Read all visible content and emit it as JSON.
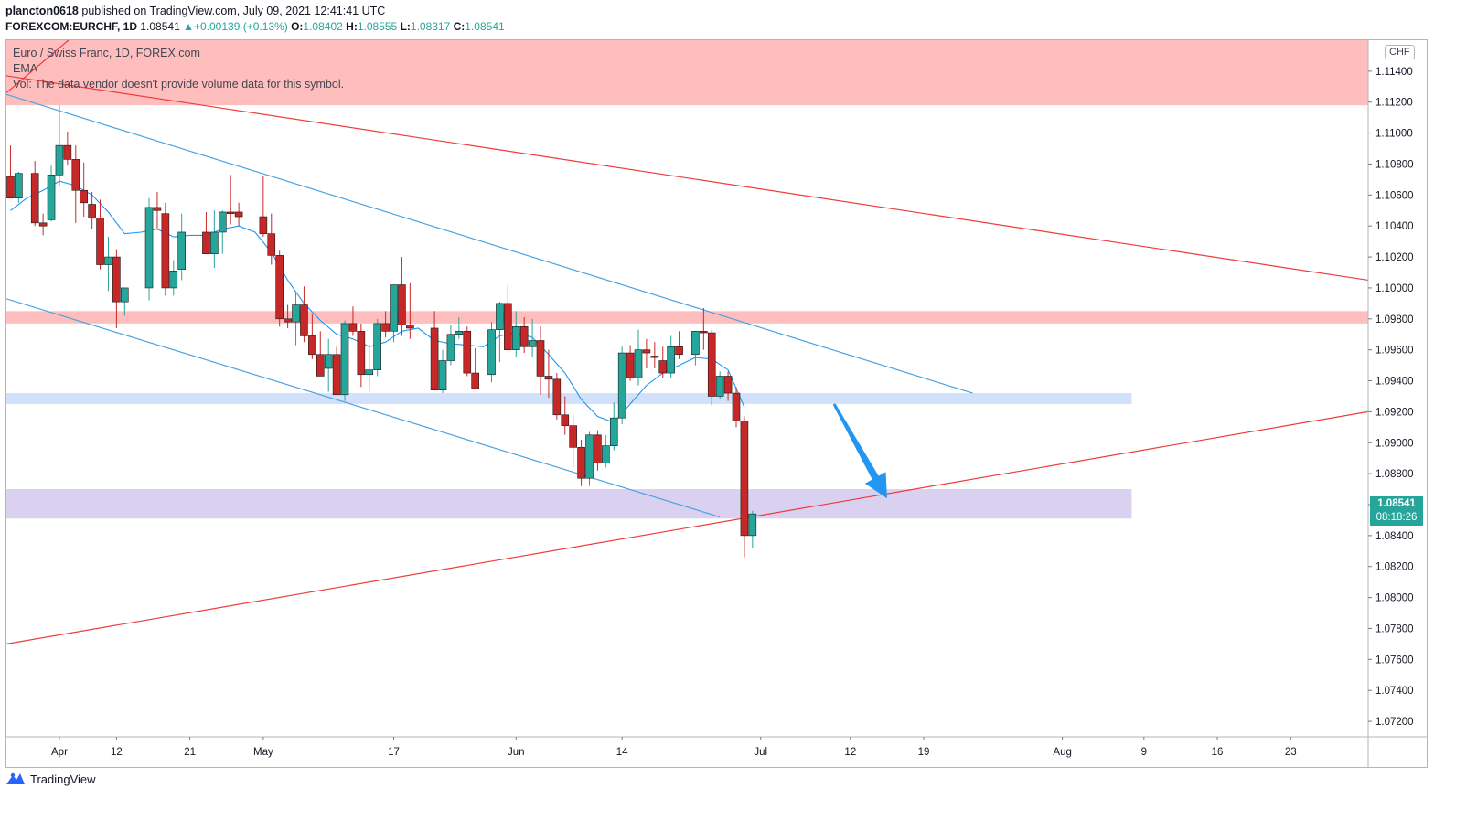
{
  "header": {
    "publisher": "plancton0618",
    "published_text": "published on TradingView.com, July 09, 2021 12:41:41 UTC",
    "symbol": "FOREXCOM:EURCHF, 1D",
    "last": "1.08541",
    "change": "+0.00139 (+0.13%)",
    "open_label": "O:",
    "open": "1.08402",
    "high_label": "H:",
    "high": "1.08555",
    "low_label": "L:",
    "low": "1.08317",
    "close_label": "C:",
    "close": "1.08541"
  },
  "legend": {
    "title": "Euro / Swiss Franc, 1D, FOREX.com",
    "ema": "EMA",
    "vol": "Vol: The data vendor doesn't provide volume data for this symbol."
  },
  "currency_badge": "CHF",
  "price_tag": {
    "price": "1.08541",
    "countdown": "08:18:26"
  },
  "footer": {
    "brand": "TradingView"
  },
  "colors": {
    "up": "#26a69a",
    "down": "#c62828",
    "ema": "#2196f3",
    "trend_red": "#ef3b3b",
    "channel_blue": "#4aa3df",
    "arrow": "#2196f3"
  },
  "chart_data": {
    "type": "candlestick",
    "y_axis": {
      "min": 1.071,
      "max": 1.116,
      "ticks": [
        "1.11400",
        "1.11200",
        "1.11000",
        "1.10800",
        "1.10600",
        "1.10400",
        "1.10200",
        "1.10000",
        "1.09800",
        "1.09600",
        "1.09400",
        "1.09200",
        "1.09000",
        "1.08800",
        "1.08600",
        "1.08400",
        "1.08200",
        "1.08000",
        "1.07800",
        "1.07600",
        "1.07400",
        "1.07200"
      ]
    },
    "x_axis": {
      "labels": [
        {
          "text": "Apr",
          "day": 6
        },
        {
          "text": "12",
          "day": 13
        },
        {
          "text": "21",
          "day": 22
        },
        {
          "text": "May",
          "day": 31
        },
        {
          "text": "17",
          "day": 47
        },
        {
          "text": "Jun",
          "day": 62
        },
        {
          "text": "14",
          "day": 75
        },
        {
          "text": "Jul",
          "day": 92
        },
        {
          "text": "12",
          "day": 103
        },
        {
          "text": "19",
          "day": 112
        },
        {
          "text": "Aug",
          "day": 129
        },
        {
          "text": "9",
          "day": 139
        },
        {
          "text": "16",
          "day": 148
        },
        {
          "text": "23",
          "day": 157
        }
      ],
      "day_range": [
        -0.5,
        166.5
      ]
    },
    "candles": [
      [
        0,
        1.1072,
        1.1092,
        1.1058,
        1.1058
      ],
      [
        1,
        1.1058,
        1.1075,
        1.1055,
        1.1074
      ],
      [
        3,
        1.1074,
        1.1082,
        1.104,
        1.1042
      ],
      [
        4,
        1.1042,
        1.1048,
        1.1034,
        1.104
      ],
      [
        5,
        1.1044,
        1.1079,
        1.1043,
        1.1073
      ],
      [
        6,
        1.1073,
        1.1118,
        1.1066,
        1.1092
      ],
      [
        7,
        1.1092,
        1.1101,
        1.1079,
        1.1083
      ],
      [
        8,
        1.1083,
        1.1092,
        1.1042,
        1.1063
      ],
      [
        9,
        1.1063,
        1.1081,
        1.1046,
        1.1055
      ],
      [
        10,
        1.1054,
        1.1062,
        1.1038,
        1.1045
      ],
      [
        11,
        1.1045,
        1.1057,
        1.1012,
        1.1015
      ],
      [
        12,
        1.1015,
        1.1033,
        1.0998,
        1.102
      ],
      [
        13,
        1.102,
        1.1025,
        1.0974,
        1.0991
      ],
      [
        14,
        1.0991,
        1.1,
        1.0982,
        1.1
      ],
      [
        17,
        1.1,
        1.1058,
        1.0992,
        1.1052
      ],
      [
        18,
        1.1052,
        1.1062,
        1.1038,
        1.105
      ],
      [
        19,
        1.1048,
        1.1055,
        1.0995,
        1.1
      ],
      [
        20,
        1.1,
        1.1018,
        1.0995,
        1.1011
      ],
      [
        21,
        1.1012,
        1.1048,
        1.1005,
        1.1036
      ],
      [
        24,
        1.1036,
        1.1049,
        1.1025,
        1.1022
      ],
      [
        25,
        1.1022,
        1.105,
        1.1013,
        1.1036
      ],
      [
        26,
        1.1036,
        1.105,
        1.1022,
        1.1049
      ],
      [
        27,
        1.1049,
        1.1073,
        1.1041,
        1.1048
      ],
      [
        28,
        1.1049,
        1.1055,
        1.104,
        1.1046
      ],
      [
        31,
        1.1046,
        1.1072,
        1.1033,
        1.1035
      ],
      [
        32,
        1.1035,
        1.1048,
        1.1015,
        1.1021
      ],
      [
        33,
        1.1021,
        1.1024,
        1.0975,
        1.098
      ],
      [
        34,
        1.098,
        1.0989,
        1.0974,
        1.0978
      ],
      [
        35,
        1.0978,
        1.0997,
        1.0963,
        1.0989
      ],
      [
        36,
        1.0989,
        1.1001,
        1.0965,
        1.0969
      ],
      [
        37,
        1.0969,
        1.0983,
        1.0954,
        1.0957
      ],
      [
        38,
        1.0957,
        1.0972,
        1.0946,
        1.0943
      ],
      [
        39,
        1.0948,
        1.0967,
        1.0933,
        1.0957
      ],
      [
        40,
        1.0957,
        1.0962,
        1.0931,
        1.0931
      ],
      [
        41,
        1.0931,
        1.0979,
        1.0927,
        1.0977
      ],
      [
        42,
        1.0977,
        1.0988,
        1.0969,
        1.0972
      ],
      [
        43,
        1.0972,
        1.0977,
        1.0936,
        1.0944
      ],
      [
        44,
        1.0944,
        1.0963,
        1.0933,
        1.0947
      ],
      [
        45,
        1.0947,
        1.098,
        1.0943,
        1.0977
      ],
      [
        46,
        1.0977,
        1.0985,
        1.0968,
        1.0972
      ],
      [
        47,
        1.0972,
        1.1,
        1.0965,
        1.1002
      ],
      [
        48,
        1.1002,
        1.102,
        1.0969,
        1.0976
      ],
      [
        49,
        1.0976,
        1.1003,
        1.0967,
        1.0974
      ],
      [
        52,
        1.0974,
        1.0985,
        1.0934,
        1.0934
      ],
      [
        53,
        1.0934,
        1.096,
        1.0932,
        1.0953
      ],
      [
        54,
        1.0953,
        1.0976,
        1.095,
        1.097
      ],
      [
        55,
        1.097,
        1.0981,
        1.0967,
        1.0972
      ],
      [
        56,
        1.0972,
        1.0975,
        1.0943,
        1.0945
      ],
      [
        57,
        1.0945,
        1.0961,
        1.0935,
        1.0935
      ],
      [
        59,
        1.0944,
        1.0978,
        1.0939,
        1.0973
      ],
      [
        60,
        1.0973,
        1.0991,
        1.0952,
        1.099
      ],
      [
        61,
        1.099,
        1.1002,
        1.096,
        1.096
      ],
      [
        62,
        1.096,
        1.0985,
        1.0955,
        1.0975
      ],
      [
        63,
        1.0975,
        1.0981,
        1.0958,
        1.0962
      ],
      [
        64,
        1.0962,
        1.098,
        1.0955,
        1.0966
      ],
      [
        65,
        1.0966,
        1.0975,
        1.0931,
        1.0943
      ],
      [
        66,
        1.0943,
        1.096,
        1.0929,
        1.0941
      ],
      [
        67,
        1.0941,
        1.0945,
        1.0915,
        1.0918
      ],
      [
        68,
        1.0918,
        1.093,
        1.0905,
        1.0911
      ],
      [
        69,
        1.0911,
        1.0918,
        1.0884,
        1.0897
      ],
      [
        70,
        1.0897,
        1.0902,
        1.0872,
        1.0877
      ],
      [
        71,
        1.0877,
        1.0907,
        1.0872,
        1.0905
      ],
      [
        72,
        1.0905,
        1.0908,
        1.0882,
        1.0887
      ],
      [
        73,
        1.0887,
        1.0905,
        1.0884,
        1.0898
      ],
      [
        74,
        1.0898,
        1.0926,
        1.0895,
        1.0916
      ],
      [
        75,
        1.0916,
        1.0962,
        1.0912,
        1.0958
      ],
      [
        76,
        1.0958,
        1.0963,
        1.094,
        1.0942
      ],
      [
        77,
        1.0942,
        1.0973,
        1.0937,
        1.096
      ],
      [
        78,
        1.096,
        1.0967,
        1.0948,
        1.0958
      ],
      [
        79,
        1.0956,
        1.0965,
        1.0948,
        1.0955
      ],
      [
        80,
        1.0953,
        1.0962,
        1.0942,
        1.0945
      ],
      [
        81,
        1.0945,
        1.0969,
        1.0942,
        1.0962
      ],
      [
        82,
        1.0962,
        1.0972,
        1.0954,
        1.0957
      ],
      [
        84,
        1.0957,
        1.0968,
        1.095,
        1.0972
      ],
      [
        85,
        1.0972,
        1.0987,
        1.096,
        1.0971
      ],
      [
        86,
        1.0971,
        1.0973,
        1.0924,
        1.093
      ],
      [
        87,
        1.093,
        1.0946,
        1.0928,
        1.0943
      ],
      [
        88,
        1.0943,
        1.0946,
        1.0927,
        1.0932
      ],
      [
        89,
        1.0932,
        1.0936,
        1.091,
        1.0914
      ],
      [
        90,
        1.0914,
        1.0917,
        1.0826,
        1.084
      ],
      [
        91,
        1.084,
        1.0856,
        1.0832,
        1.0854
      ]
    ],
    "ema_points": [
      [
        0,
        1.105
      ],
      [
        2,
        1.1058
      ],
      [
        4,
        1.1063
      ],
      [
        6,
        1.1069
      ],
      [
        8,
        1.1066
      ],
      [
        10,
        1.106
      ],
      [
        12,
        1.1049
      ],
      [
        14,
        1.1035
      ],
      [
        16,
        1.1036
      ],
      [
        18,
        1.1038
      ],
      [
        20,
        1.1033
      ],
      [
        22,
        1.1034
      ],
      [
        24,
        1.1034
      ],
      [
        26,
        1.1038
      ],
      [
        28,
        1.104
      ],
      [
        30,
        1.1036
      ],
      [
        32,
        1.1023
      ],
      [
        34,
        1.1005
      ],
      [
        36,
        1.099
      ],
      [
        38,
        1.0979
      ],
      [
        40,
        1.097
      ],
      [
        42,
        1.0967
      ],
      [
        44,
        1.0962
      ],
      [
        46,
        1.0965
      ],
      [
        48,
        1.0972
      ],
      [
        50,
        1.0974
      ],
      [
        52,
        1.0966
      ],
      [
        54,
        1.0964
      ],
      [
        56,
        1.0963
      ],
      [
        58,
        1.0962
      ],
      [
        60,
        1.0969
      ],
      [
        62,
        1.0971
      ],
      [
        64,
        1.0968
      ],
      [
        66,
        1.0957
      ],
      [
        68,
        1.0945
      ],
      [
        70,
        1.0928
      ],
      [
        72,
        1.0917
      ],
      [
        74,
        1.0913
      ],
      [
        76,
        1.0925
      ],
      [
        78,
        1.0937
      ],
      [
        80,
        1.0945
      ],
      [
        82,
        1.095
      ],
      [
        84,
        1.0955
      ],
      [
        86,
        1.0954
      ],
      [
        88,
        1.0947
      ],
      [
        90,
        1.0923
      ]
    ],
    "trendlines": [
      {
        "color": "trend_red",
        "from": [
          -0.5,
          1.1137
        ],
        "to": [
          166.5,
          1.1005
        ]
      },
      {
        "color": "trend_red",
        "from": [
          -0.5,
          1.1126
        ],
        "to": [
          8,
          1.1164
        ]
      },
      {
        "color": "trend_red",
        "from": [
          -0.5,
          1.077
        ],
        "to": [
          166.5,
          1.092
        ]
      },
      {
        "color": "channel_blue",
        "from": [
          -0.5,
          1.1125
        ],
        "to": [
          118,
          1.0932
        ]
      },
      {
        "color": "channel_blue",
        "from": [
          -0.5,
          1.0993
        ],
        "to": [
          87,
          1.0852
        ]
      }
    ],
    "zones": [
      {
        "color": "#ffb3b3",
        "y_from": 1.1118,
        "y_to": 1.116,
        "day_from": -0.5,
        "day_to": 166.5
      },
      {
        "color": "#ffb3b3",
        "y_from": 1.0977,
        "y_to": 1.0985,
        "day_from": -0.5,
        "day_to": 166.5
      },
      {
        "color": "#c9dcfa",
        "y_from": 1.0925,
        "y_to": 1.0932,
        "day_from": -0.5,
        "day_to": 137.5
      },
      {
        "color": "#d3c8ec",
        "y_from": 1.0851,
        "y_to": 1.087,
        "day_from": -0.5,
        "day_to": 137.5
      }
    ],
    "arrow": {
      "from": [
        101,
        1.0925
      ],
      "to": [
        107.5,
        1.0864
      ]
    }
  }
}
